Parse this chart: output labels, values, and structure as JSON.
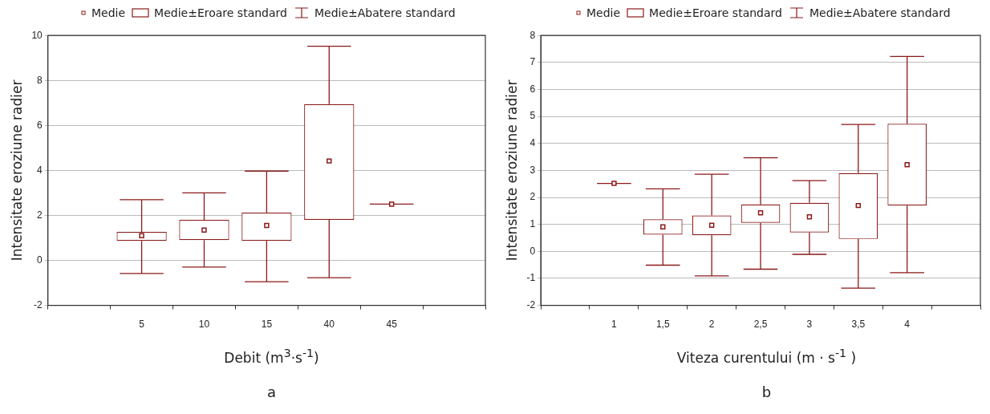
{
  "chart_data": [
    {
      "type": "box",
      "xlabel": "Debit (m$^{3}$·s$^{-1}$)",
      "ylabel": "Intensitate eroziune radier",
      "categories": [
        null,
        "5",
        "10",
        "15",
        "40",
        "45",
        null
      ],
      "color": "#8b1a1a",
      "ylim": [
        -2,
        10
      ],
      "yticks": [
        -2,
        0,
        2,
        4,
        6,
        8,
        10
      ],
      "grid": "y",
      "boxes": [
        null,
        {
          "low": -0.58,
          "q1": 0.87,
          "q3": 1.27,
          "high": 2.7,
          "mean": 1.1
        },
        {
          "low": -0.3,
          "q1": 0.9,
          "q3": 1.8,
          "high": 3.0,
          "mean": 1.35
        },
        {
          "low": -0.95,
          "q1": 0.87,
          "q3": 2.12,
          "high": 3.97,
          "mean": 1.55
        },
        {
          "low": -0.77,
          "q1": 1.8,
          "q3": 6.95,
          "high": 9.52,
          "mean": 4.42
        },
        {
          "low": 2.5,
          "q1": 2.5,
          "q3": 2.5,
          "high": 2.5,
          "mean": 2.5
        },
        null
      ],
      "annotations": [
        "Medie",
        "Medie±Eroare standard",
        "Medie±Abatere standard",
        "a"
      ]
    },
    {
      "type": "box",
      "xlabel": "Viteza curentului (m · s$^{-1}$ )",
      "ylabel": "Intensitate eroziune radier",
      "categories": [
        null,
        "1",
        "1,5",
        "2",
        "2,5",
        "3",
        "3,5",
        "4",
        null
      ],
      "color": "#8b1a1a",
      "ylim": [
        -2,
        8
      ],
      "yticks": [
        -2,
        -1,
        0,
        1,
        2,
        3,
        4,
        5,
        6,
        7,
        8
      ],
      "grid": "y",
      "boxes": [
        null,
        {
          "low": 2.52,
          "q1": 2.52,
          "q3": 2.52,
          "high": 2.52,
          "mean": 2.52
        },
        {
          "low": -0.51,
          "q1": 0.62,
          "q3": 1.19,
          "high": 2.32,
          "mean": 0.91
        },
        {
          "low": -0.91,
          "q1": 0.6,
          "q3": 1.33,
          "high": 2.86,
          "mean": 0.97
        },
        {
          "low": -0.66,
          "q1": 1.06,
          "q3": 1.74,
          "high": 3.47,
          "mean": 1.43
        },
        {
          "low": -0.11,
          "q1": 0.7,
          "q3": 1.8,
          "high": 2.62,
          "mean": 1.28
        },
        {
          "low": -1.36,
          "q1": 0.46,
          "q3": 2.9,
          "high": 4.7,
          "mean": 1.7
        },
        {
          "low": -0.79,
          "q1": 1.7,
          "q3": 4.73,
          "high": 7.22,
          "mean": 3.21
        },
        null
      ],
      "annotations": [
        "Medie",
        "Medie±Eroare standard",
        "Medie±Abatere standard",
        "b"
      ]
    }
  ]
}
